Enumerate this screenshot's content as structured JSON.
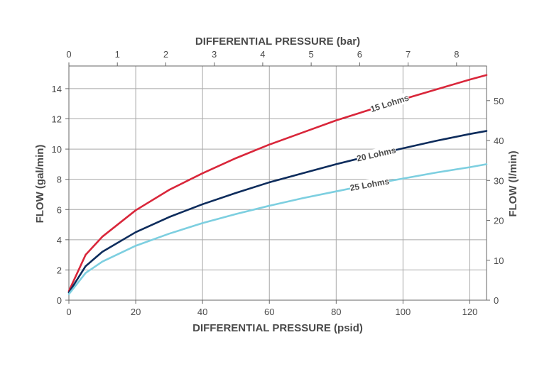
{
  "chart_data": {
    "type": "line",
    "title": "",
    "xlabel": "DIFFERENTIAL PRESSURE (psid)",
    "xlabel_top": "DIFFERENTIAL PRESSURE (bar)",
    "ylabel": "FLOW (gal/min)",
    "ylabel_right": "FLOW (l/min)",
    "xlim": [
      0,
      125
    ],
    "ylim": [
      0,
      15.5
    ],
    "x_ticks": [
      0,
      20,
      40,
      60,
      80,
      100,
      120
    ],
    "y_ticks": [
      0,
      2,
      4,
      6,
      8,
      10,
      12,
      14
    ],
    "x_top_ticks": [
      0,
      1,
      2,
      3,
      4,
      5,
      6,
      7,
      8
    ],
    "y_right_ticks": [
      0,
      10,
      20,
      30,
      40,
      50
    ],
    "grid": true,
    "legend": "none",
    "series": [
      {
        "name": "15 Lohms",
        "color": "#d9263a",
        "x": [
          0,
          5,
          10,
          20,
          30,
          40,
          50,
          60,
          70,
          80,
          90,
          100,
          110,
          120,
          125
        ],
        "y": [
          0.6,
          3.0,
          4.2,
          5.95,
          7.3,
          8.4,
          9.4,
          10.3,
          11.1,
          11.9,
          12.6,
          13.3,
          13.95,
          14.6,
          14.9
        ]
      },
      {
        "name": "20 Lohms",
        "color": "#0d2c5c",
        "x": [
          0,
          5,
          10,
          20,
          30,
          40,
          50,
          60,
          70,
          80,
          90,
          100,
          110,
          120,
          125
        ],
        "y": [
          0.5,
          2.25,
          3.2,
          4.5,
          5.5,
          6.35,
          7.1,
          7.8,
          8.4,
          9.0,
          9.55,
          10.05,
          10.55,
          11.0,
          11.2
        ]
      },
      {
        "name": "25 Lohms",
        "color": "#7dcfe0",
        "x": [
          0,
          5,
          10,
          20,
          30,
          40,
          50,
          60,
          70,
          80,
          90,
          100,
          110,
          120,
          125
        ],
        "y": [
          0.4,
          1.8,
          2.55,
          3.6,
          4.4,
          5.1,
          5.7,
          6.25,
          6.75,
          7.2,
          7.65,
          8.05,
          8.45,
          8.8,
          9.0
        ]
      }
    ]
  }
}
